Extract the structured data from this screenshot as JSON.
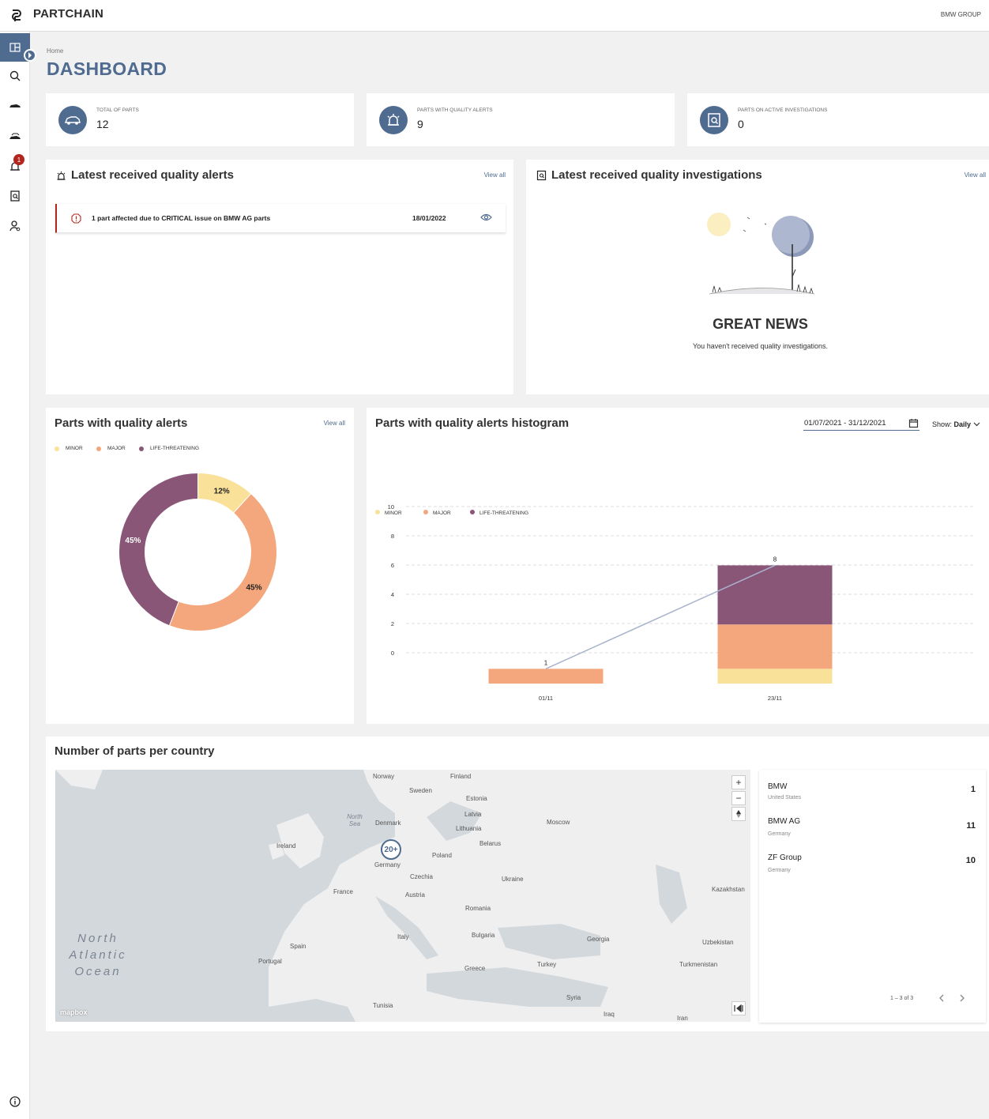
{
  "header": {
    "app_title": "PARTCHAIN",
    "org": "BMW GROUP"
  },
  "sidebar": {
    "alert_badge": "1"
  },
  "page": {
    "breadcrumb": "Home",
    "title": "DASHBOARD"
  },
  "kpis": [
    {
      "label": "TOTAL OF PARTS",
      "value": "12"
    },
    {
      "label": "PARTS WITH QUALITY ALERTS",
      "value": "9"
    },
    {
      "label": "PARTS ON ACTIVE INVESTIGATIONS",
      "value": "0"
    }
  ],
  "alerts_card": {
    "title": "Latest received quality alerts",
    "view_all": "View all",
    "row": {
      "text": "1 part affected due to CRITICAL issue on BMW AG parts",
      "date": "18/01/2022"
    }
  },
  "investigations_card": {
    "title": "Latest received quality investigations",
    "view_all": "View all",
    "empty_title": "GREAT NEWS",
    "empty_text": "You haven't received quality investigations."
  },
  "donut_card": {
    "title": "Parts with quality alerts",
    "view_all": "View all"
  },
  "histogram_card": {
    "title": "Parts with quality alerts histogram",
    "date_range": "01/07/2021 - 31/12/2021",
    "show_label": "Show:",
    "show_value": "Daily"
  },
  "chart_data": [
    {
      "type": "pie",
      "labels": [
        "MINOR",
        "MAJOR",
        "LIFE-THREATENING"
      ],
      "values": [
        12,
        45,
        45
      ],
      "value_labels": [
        "12%",
        "45%",
        "45%"
      ],
      "colors": [
        "#f9e19a",
        "#f4a77d",
        "#8a5677"
      ]
    },
    {
      "type": "bar",
      "categories": [
        "01/11",
        "23/11"
      ],
      "series": [
        {
          "name": "MINOR",
          "values": [
            0,
            1
          ]
        },
        {
          "name": "MAJOR",
          "values": [
            1,
            3
          ]
        },
        {
          "name": "LIFE-THREATENING",
          "values": [
            0,
            4
          ]
        }
      ],
      "totals": [
        1,
        8
      ],
      "total_labels": [
        "1",
        "8"
      ],
      "yticks": [
        "0",
        "2",
        "4",
        "6",
        "8",
        "10"
      ],
      "colors": [
        "#f9e19a",
        "#f4a77d",
        "#8a5677"
      ]
    }
  ],
  "legend": [
    "MINOR",
    "MAJOR",
    "LIFE-THREATENING"
  ],
  "map_card": {
    "title": "Number of parts per country",
    "cluster_label": "20+",
    "attribution": "mapbox",
    "labels": [
      "Norway",
      "Sweden",
      "Finland",
      "Denmark",
      "Ireland",
      "Poland",
      "Belarus",
      "Germany",
      "France",
      "Ukraine",
      "Romania",
      "Spain",
      "Portugal",
      "Italy",
      "Turkey",
      "Greece",
      "Kazakhstan",
      "Uzbekistan",
      "Turkmenistan",
      "Tunisia",
      "Syria",
      "Iraq",
      "Iran",
      "Georgia",
      "Czechia",
      "Austria",
      "Bulgaria",
      "Lithuania",
      "Latvia",
      "Estonia",
      "Moscow",
      "North Sea",
      "North Atlantic Ocean"
    ]
  },
  "countries": [
    {
      "name": "BMW",
      "country": "United States",
      "count": "1"
    },
    {
      "name": "BMW AG",
      "country": "Germany",
      "count": "11"
    },
    {
      "name": "ZF Group",
      "country": "Germany",
      "count": "10"
    }
  ],
  "pagination": {
    "range": "1 – 3 of 3"
  }
}
